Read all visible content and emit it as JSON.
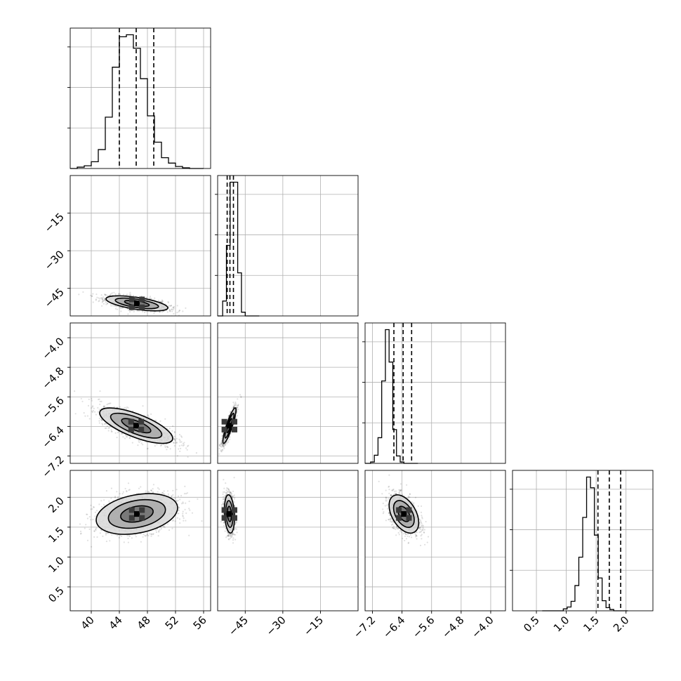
{
  "chart_data": {
    "type": "corner",
    "parameters": [
      {
        "ticks": [
          40,
          44,
          48,
          52,
          56
        ],
        "tick_labels": [
          "40",
          "44",
          "48",
          "52",
          "56"
        ],
        "range": [
          37.0,
          57.0
        ]
      },
      {
        "ticks": [
          -45,
          -30,
          -15
        ],
        "tick_labels": [
          "−45",
          "−30",
          "−15"
        ],
        "range": [
          -56.0,
          0.0
        ]
      },
      {
        "ticks": [
          -7.2,
          -6.4,
          -5.6,
          -4.8,
          -4.0
        ],
        "tick_labels": [
          "−7.2",
          "−6.4",
          "−5.6",
          "−4.8",
          "−4.0"
        ],
        "range": [
          -7.4,
          -3.6
        ]
      },
      {
        "ticks": [
          0.5,
          1.0,
          1.5,
          2.0
        ],
        "tick_labels": [
          "0.5",
          "1.0",
          "1.5",
          "2.0"
        ],
        "range": [
          0.1,
          2.45
        ]
      }
    ],
    "grid": true,
    "histograms": [
      {
        "param": 0,
        "edges_from": 38.0,
        "bin_width": 1.0,
        "counts": [
          2,
          4,
          10,
          28,
          76,
          150,
          195,
          198,
          178,
          133,
          78,
          39,
          16,
          8,
          3,
          1
        ],
        "quantiles": [
          44.0,
          46.4,
          48.9
        ]
      },
      {
        "param": 1,
        "edges_from": -54.0,
        "bin_width": 1.5,
        "counts": [
          20,
          95,
          180,
          180,
          58,
          5
        ],
        "quantiles": [
          -52.2,
          -51.1,
          -49.7
        ]
      },
      {
        "param": 2,
        "edges_from": -7.25,
        "bin_width": 0.1,
        "counts": [
          2,
          12,
          38,
          122,
          198,
          150,
          50,
          11,
          2
        ],
        "quantiles": [
          -6.62,
          -6.37,
          -6.14
        ]
      },
      {
        "param": 3,
        "edges_from": 0.95,
        "bin_width": 0.065,
        "counts": [
          3,
          6,
          15,
          40,
          85,
          148,
          212,
          195,
          120,
          52,
          16,
          5,
          2
        ],
        "quantiles": [
          1.53,
          1.72,
          1.91
        ]
      }
    ],
    "joint": [
      {
        "x_param": 0,
        "y_param": 1,
        "center": [
          46.5,
          -51.0
        ],
        "sigma": [
          2.2,
          1.5
        ],
        "rho": -0.6
      },
      {
        "x_param": 0,
        "y_param": 2,
        "center": [
          46.4,
          -6.38
        ],
        "sigma": [
          2.6,
          0.24
        ],
        "rho": -0.72
      },
      {
        "x_param": 0,
        "y_param": 3,
        "center": [
          46.5,
          1.72
        ],
        "sigma": [
          2.9,
          0.17
        ],
        "rho": 0.3
      },
      {
        "x_param": 1,
        "y_param": 2,
        "center": [
          -51.3,
          -6.38
        ],
        "sigma": [
          1.3,
          0.24
        ],
        "rho": 0.88
      },
      {
        "x_param": 1,
        "y_param": 3,
        "center": [
          -51.3,
          1.72
        ],
        "sigma": [
          1.0,
          0.16
        ],
        "rho": -0.2
      },
      {
        "x_param": 2,
        "y_param": 3,
        "center": [
          -6.35,
          1.72
        ],
        "sigma": [
          0.2,
          0.16
        ],
        "rho": -0.45
      }
    ]
  }
}
